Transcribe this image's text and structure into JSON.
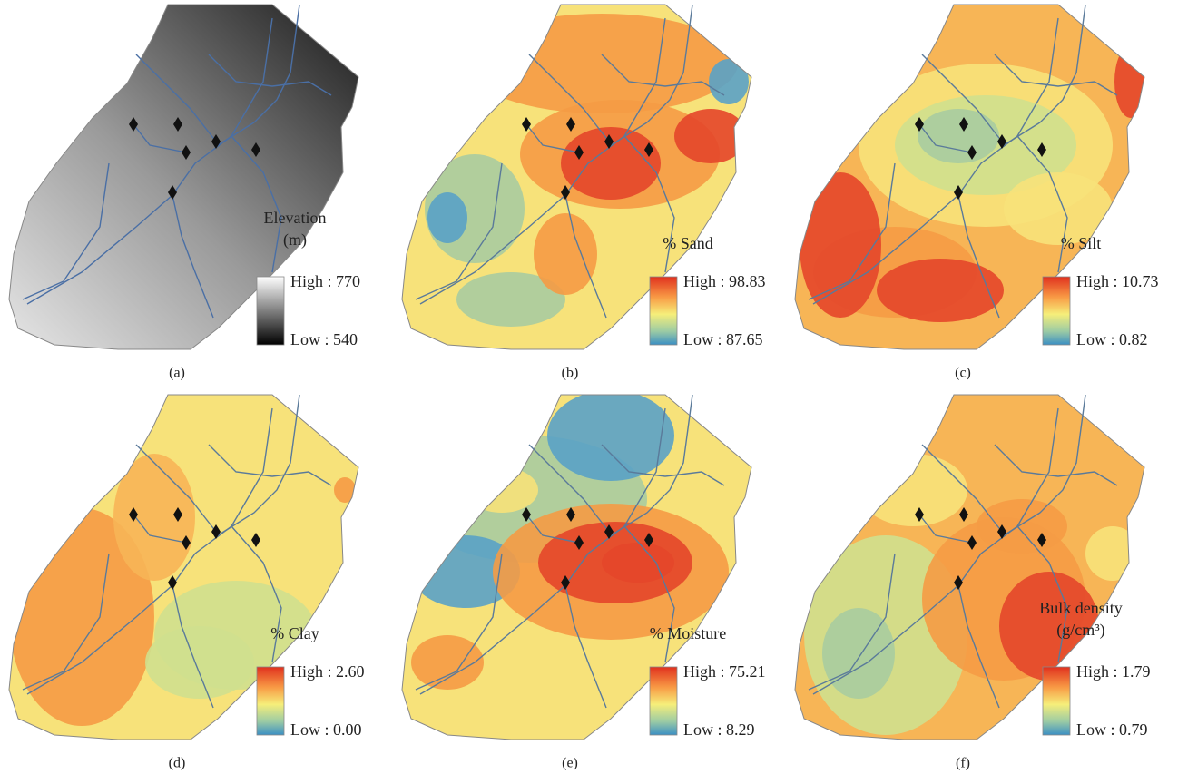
{
  "panels": [
    {
      "caption": "(a)",
      "legend_title": [
        "Elevation",
        "(m)"
      ],
      "high": "High : 770",
      "low": "Low : 540"
    },
    {
      "caption": "(b)",
      "legend_title": [
        "% Sand"
      ],
      "high": "High : 98.83",
      "low": "Low : 87.65"
    },
    {
      "caption": "(c)",
      "legend_title": [
        "% Silt"
      ],
      "high": "High : 10.73",
      "low": "Low : 0.82"
    },
    {
      "caption": "(d)",
      "legend_title": [
        "% Clay"
      ],
      "high": "High : 2.60",
      "low": "Low : 0.00"
    },
    {
      "caption": "(e)",
      "legend_title": [
        "% Moisture"
      ],
      "high": "High : 75.21",
      "low": "Low : 8.29"
    },
    {
      "caption": "(f)",
      "legend_title": [
        "Bulk density",
        "(g/cm³)"
      ],
      "high": "High : 1.79",
      "low": "Low : 0.79"
    }
  ]
}
